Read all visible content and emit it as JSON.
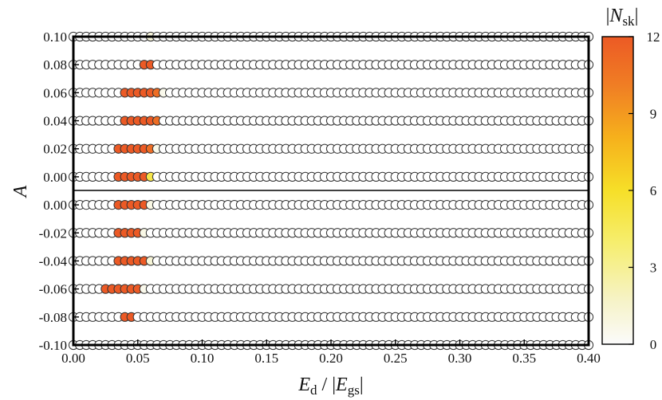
{
  "chart_data": {
    "type": "scatter",
    "xlabel": "E_d / |E_gs|",
    "ylabel": "A",
    "xlim": [
      0.0,
      0.4
    ],
    "x_step": 0.005,
    "x_ticks": [
      "0.00",
      "0.05",
      "0.10",
      "0.15",
      "0.20",
      "0.25",
      "0.30",
      "0.35",
      "0.40"
    ],
    "rows": [
      {
        "label": "0.10",
        "cells": [
          {
            "x": 0.06,
            "n": 1
          }
        ]
      },
      {
        "label": "0.08",
        "cells": [
          {
            "x": 0.055,
            "n": 12
          },
          {
            "x": 0.06,
            "n": 12
          }
        ]
      },
      {
        "label": "0.06",
        "cells": [
          {
            "x": 0.04,
            "n": 12
          },
          {
            "x": 0.045,
            "n": 12
          },
          {
            "x": 0.05,
            "n": 12
          },
          {
            "x": 0.055,
            "n": 12
          },
          {
            "x": 0.06,
            "n": 12
          },
          {
            "x": 0.065,
            "n": 11
          },
          {
            "x": 0.07,
            "n": 0.5
          }
        ]
      },
      {
        "label": "0.04",
        "cells": [
          {
            "x": 0.04,
            "n": 12
          },
          {
            "x": 0.045,
            "n": 12
          },
          {
            "x": 0.05,
            "n": 12
          },
          {
            "x": 0.055,
            "n": 12
          },
          {
            "x": 0.06,
            "n": 12
          },
          {
            "x": 0.065,
            "n": 11
          }
        ]
      },
      {
        "label": "0.02",
        "cells": [
          {
            "x": 0.035,
            "n": 12
          },
          {
            "x": 0.04,
            "n": 12
          },
          {
            "x": 0.045,
            "n": 12
          },
          {
            "x": 0.05,
            "n": 12
          },
          {
            "x": 0.055,
            "n": 12
          },
          {
            "x": 0.06,
            "n": 11
          },
          {
            "x": 0.065,
            "n": 0.6
          }
        ]
      },
      {
        "label": "0.00",
        "cells": [
          {
            "x": 0.035,
            "n": 12
          },
          {
            "x": 0.04,
            "n": 12
          },
          {
            "x": 0.045,
            "n": 12
          },
          {
            "x": 0.05,
            "n": 12
          },
          {
            "x": 0.055,
            "n": 12
          },
          {
            "x": 0.06,
            "n": 5
          }
        ]
      },
      {
        "label": "0.00",
        "cells": [
          {
            "x": 0.035,
            "n": 12
          },
          {
            "x": 0.04,
            "n": 12
          },
          {
            "x": 0.045,
            "n": 12
          },
          {
            "x": 0.05,
            "n": 12
          },
          {
            "x": 0.055,
            "n": 12
          },
          {
            "x": 0.06,
            "n": 0.8
          }
        ]
      },
      {
        "label": "-0.02",
        "cells": [
          {
            "x": 0.035,
            "n": 12
          },
          {
            "x": 0.04,
            "n": 12
          },
          {
            "x": 0.045,
            "n": 12
          },
          {
            "x": 0.05,
            "n": 12
          },
          {
            "x": 0.055,
            "n": 0.7
          }
        ]
      },
      {
        "label": "-0.04",
        "cells": [
          {
            "x": 0.035,
            "n": 12
          },
          {
            "x": 0.04,
            "n": 12
          },
          {
            "x": 0.045,
            "n": 12
          },
          {
            "x": 0.05,
            "n": 12
          },
          {
            "x": 0.055,
            "n": 12
          },
          {
            "x": 0.06,
            "n": 1.2
          }
        ]
      },
      {
        "label": "-0.06",
        "cells": [
          {
            "x": 0.025,
            "n": 12
          },
          {
            "x": 0.03,
            "n": 12
          },
          {
            "x": 0.035,
            "n": 12
          },
          {
            "x": 0.04,
            "n": 12
          },
          {
            "x": 0.045,
            "n": 12
          },
          {
            "x": 0.05,
            "n": 12
          },
          {
            "x": 0.055,
            "n": 0.5
          }
        ]
      },
      {
        "label": "-0.08",
        "cells": [
          {
            "x": 0.04,
            "n": 12
          },
          {
            "x": 0.045,
            "n": 12
          }
        ]
      },
      {
        "label": "-0.10",
        "cells": []
      }
    ],
    "colorbar": {
      "label": "|N_sk|",
      "range": [
        0,
        12
      ],
      "ticks": [
        "0",
        "3",
        "6",
        "9",
        "12"
      ]
    }
  },
  "text": {
    "y_title": "A",
    "x_title_main": "E",
    "x_title_sub": "d",
    "x_title_mid": " / |",
    "x_title_main2": "E",
    "x_title_sub2": "gs",
    "x_title_end": "|",
    "cb_title_open": "|",
    "cb_title_main": "N",
    "cb_title_sub": "sk",
    "cb_title_close": "|"
  },
  "colors": {
    "marker_stroke": "#333333",
    "frame": "#000000",
    "scale": [
      "#fbfbfb",
      "#f6f3c8",
      "#f6ee6e",
      "#f6df28",
      "#f6b11c",
      "#f07e24",
      "#ec5a25"
    ]
  }
}
